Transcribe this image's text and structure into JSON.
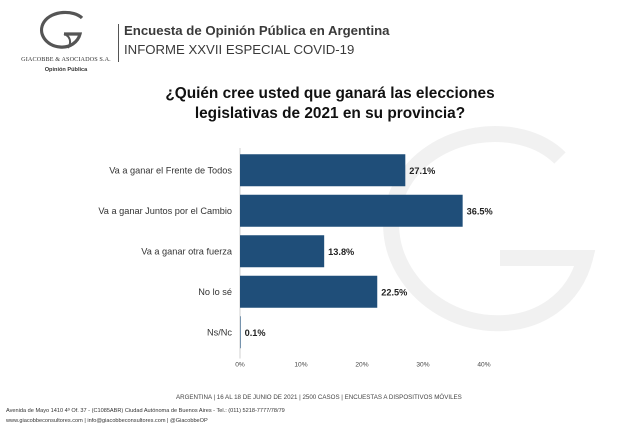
{
  "header": {
    "title": "Encuesta de Opinión Pública en Argentina",
    "subtitle": "INFORME XXVII ESPECIAL COVID-19"
  },
  "logo": {
    "company": "GIACOBBE & ASOCIADOS S.A.",
    "subtitle": "Opinión Pública"
  },
  "chart_data": {
    "type": "bar",
    "orientation": "horizontal",
    "title": "¿Quién cree usted que ganará las elecciones legislativas de 2021 en su provincia?",
    "categories": [
      "Va a ganar el Frente de Todos",
      "Va a ganar Juntos por el Cambio",
      "Va a ganar otra fuerza",
      "No lo sé",
      "Ns/Nc"
    ],
    "values": [
      27.1,
      36.5,
      13.8,
      22.5,
      0.1
    ],
    "value_labels": [
      "27.1%",
      "36.5%",
      "13.8%",
      "22.5%",
      "0.1%"
    ],
    "x_ticks": [
      "0%",
      "10%",
      "20%",
      "30%",
      "40%"
    ],
    "xlim": [
      0,
      40
    ],
    "bar_color": "#1f4e79",
    "grid": false,
    "legend": "none"
  },
  "footer": {
    "center": "ARGENTINA | 16 AL 18 DE JUNIO DE 2021 | 2500 CASOS | ENCUESTAS A DISPOSITIVOS MÓVILES",
    "address": "Avenida de Mayo 1410 4º Of. 37 - (C1085ABR) Ciudad Autónoma de Buenos Aires - Tel.: (011) 5218-7777/78/79",
    "contact": "www.giacobbeconsultores.com | info@giacobbeconsultores.com | @GiacobbeOP"
  }
}
